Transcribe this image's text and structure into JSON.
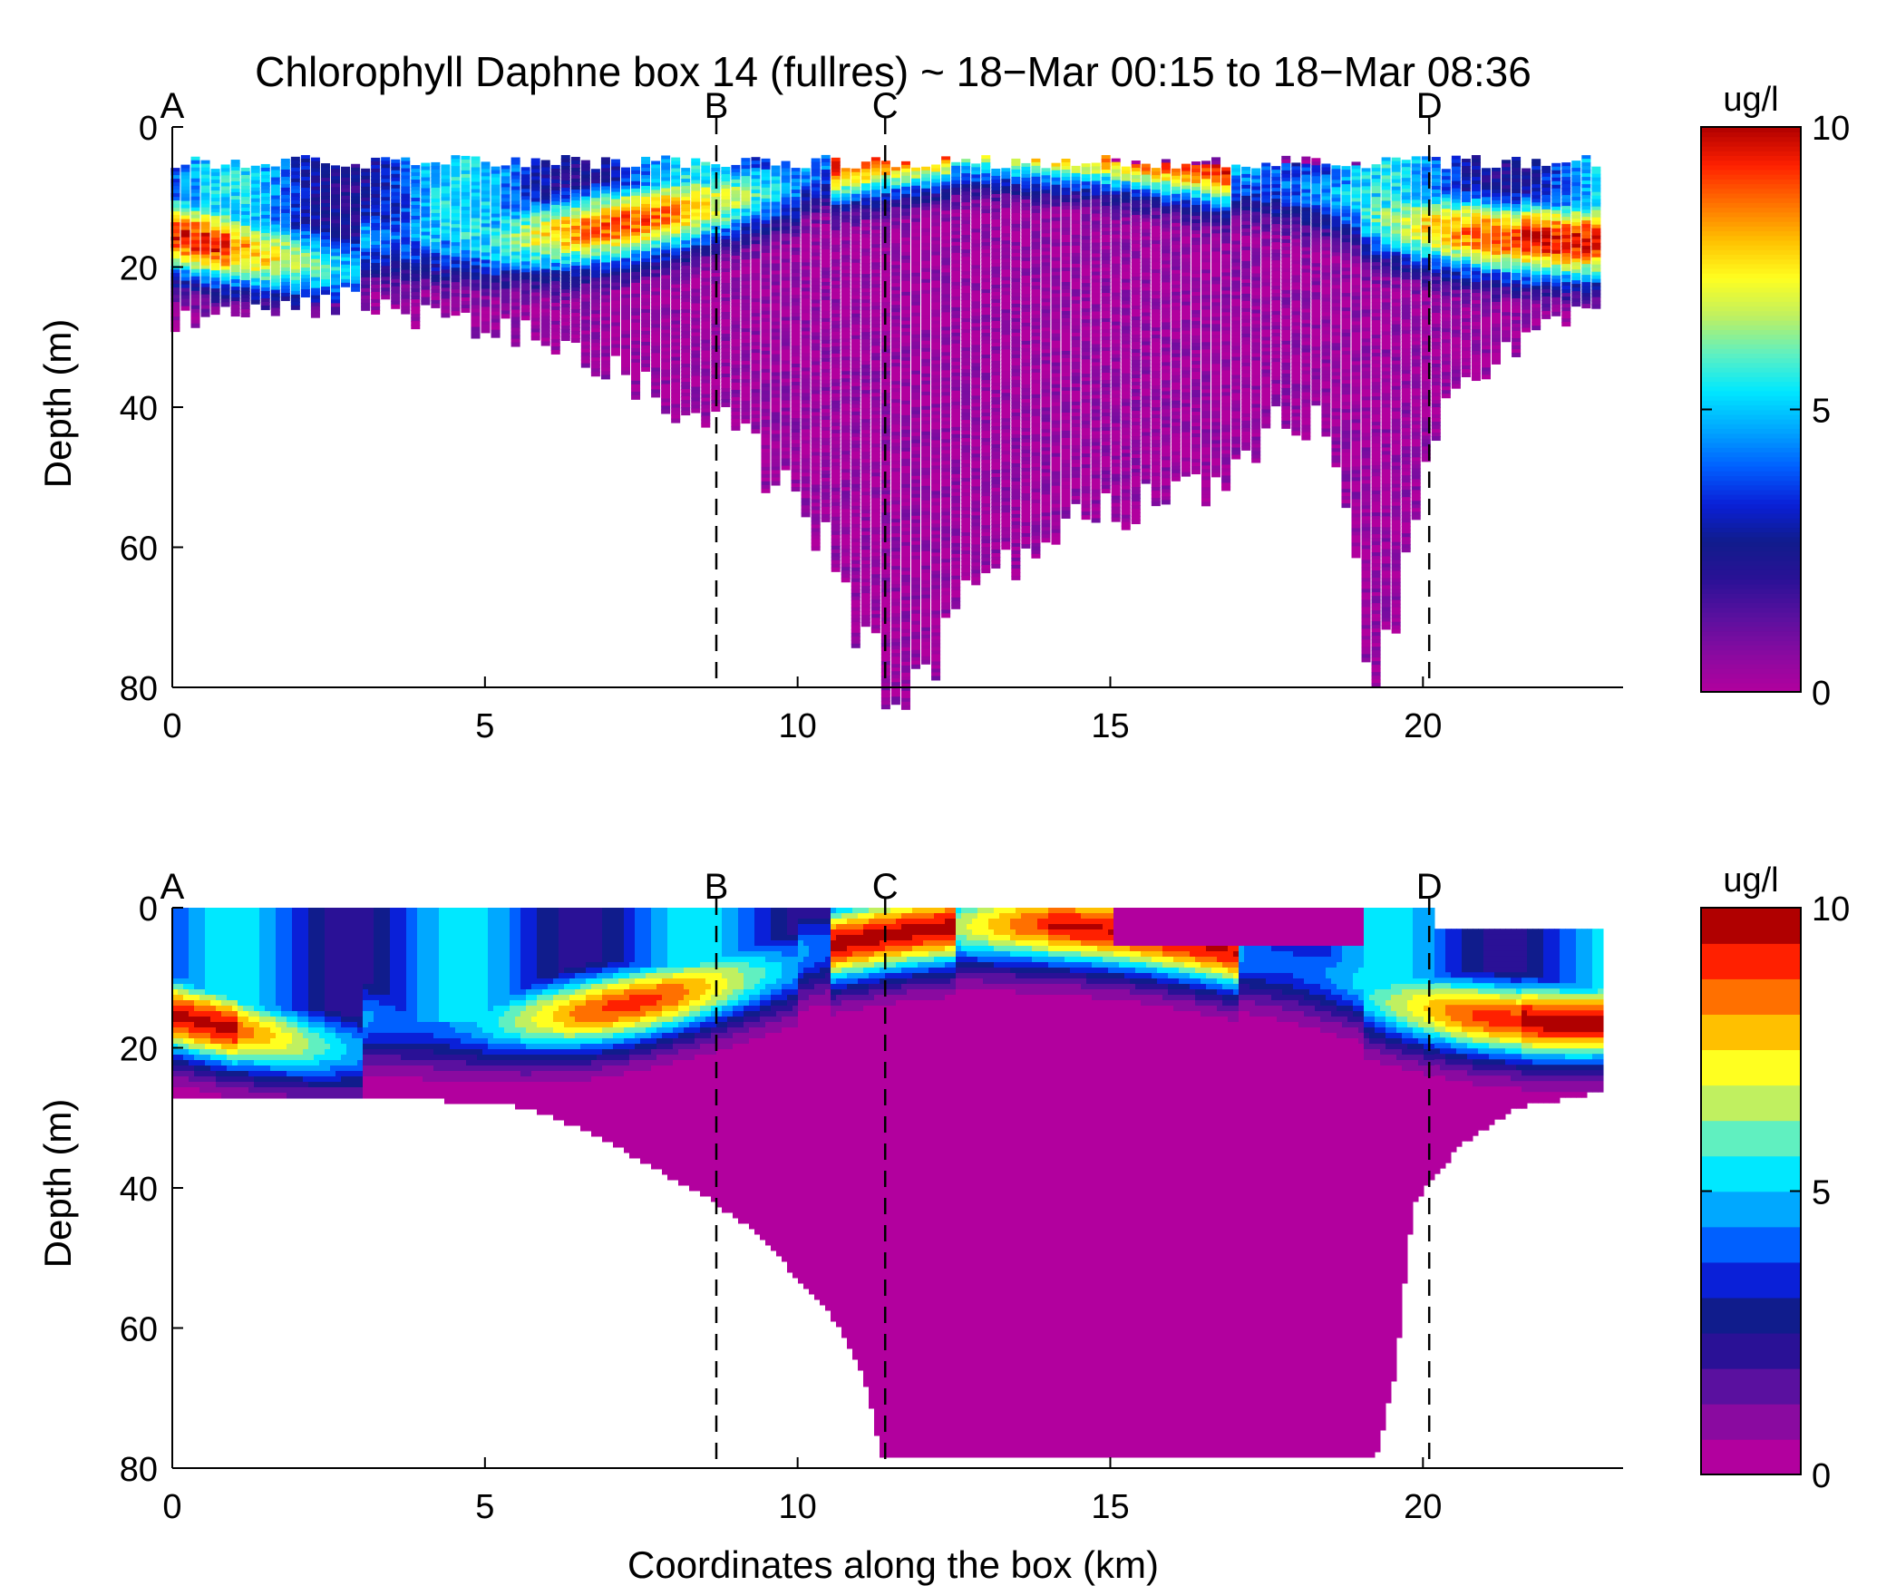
{
  "title": "Chlorophyll Daphne box 14 (fullres) ~ 18−Mar 00:15 to 18−Mar 08:36",
  "colormap": [
    "#b2009e",
    "#8a0aa0",
    "#5a109f",
    "#2a1196",
    "#101c8c",
    "#0a20d8",
    "#0060ff",
    "#00a8ff",
    "#00e8ff",
    "#60f0c0",
    "#c0f060",
    "#ffff20",
    "#ffc000",
    "#ff7000",
    "#ff2000",
    "#b00000"
  ],
  "panel_colors": {
    "background": "#ffffff",
    "axis": "#000000"
  },
  "chart_data": [
    {
      "type": "scatter",
      "name": "top",
      "title": "Chlorophyll Daphne box 14 (fullres) ~ 18−Mar 00:15 to 18−Mar 08:36",
      "xlabel": "",
      "ylabel": "Depth (m)",
      "xlim": [
        0,
        23.2
      ],
      "ylim": [
        0,
        80
      ],
      "y_reversed": true,
      "x_ticks": [
        "0",
        "5",
        "10",
        "15",
        "20"
      ],
      "y_ticks": [
        "0",
        "20",
        "40",
        "60",
        "80"
      ],
      "colorbar": {
        "label": "ug/l",
        "ticks": [
          "0",
          "5",
          "10"
        ],
        "range": [
          0,
          10
        ]
      },
      "section_markers": [
        {
          "label": "A",
          "x": 0.0,
          "dashed": false
        },
        {
          "label": "B",
          "x": 8.7,
          "dashed": true
        },
        {
          "label": "C",
          "x": 11.4,
          "dashed": true
        },
        {
          "label": "D",
          "x": 20.1,
          "dashed": true
        }
      ],
      "profile_max_depth": [
        {
          "x": 0.3,
          "depth": 27
        },
        {
          "x": 1.5,
          "depth": 26
        },
        {
          "x": 3.0,
          "depth": 24
        },
        {
          "x": 4.0,
          "depth": 27
        },
        {
          "x": 5.0,
          "depth": 28
        },
        {
          "x": 6.0,
          "depth": 30
        },
        {
          "x": 7.0,
          "depth": 34
        },
        {
          "x": 8.0,
          "depth": 39
        },
        {
          "x": 8.7,
          "depth": 42
        },
        {
          "x": 9.5,
          "depth": 48
        },
        {
          "x": 10.3,
          "depth": 58
        },
        {
          "x": 10.8,
          "depth": 66
        },
        {
          "x": 11.2,
          "depth": 78
        },
        {
          "x": 11.7,
          "depth": 78
        },
        {
          "x": 12.2,
          "depth": 78
        },
        {
          "x": 12.7,
          "depth": 66
        },
        {
          "x": 13.5,
          "depth": 61
        },
        {
          "x": 14.5,
          "depth": 57
        },
        {
          "x": 15.5,
          "depth": 55
        },
        {
          "x": 16.5,
          "depth": 51
        },
        {
          "x": 17.5,
          "depth": 43
        },
        {
          "x": 18.5,
          "depth": 41
        },
        {
          "x": 19.2,
          "depth": 78
        },
        {
          "x": 19.6,
          "depth": 68
        },
        {
          "x": 20.3,
          "depth": 38
        },
        {
          "x": 21.0,
          "depth": 33
        },
        {
          "x": 22.0,
          "depth": 28
        },
        {
          "x": 22.8,
          "depth": 26
        }
      ]
    },
    {
      "type": "heatmap",
      "name": "bottom",
      "title": "",
      "xlabel": "Coordinates along the box (km)",
      "ylabel": "Depth (m)",
      "xlim": [
        0,
        23.2
      ],
      "ylim": [
        0,
        80
      ],
      "y_reversed": true,
      "x_ticks": [
        "0",
        "5",
        "10",
        "15",
        "20"
      ],
      "y_ticks": [
        "0",
        "20",
        "40",
        "60",
        "80"
      ],
      "colorbar": {
        "label": "ug/l",
        "ticks": [
          "0",
          "5",
          "10"
        ],
        "range": [
          0,
          10
        ],
        "levels": 16
      },
      "section_markers": [
        {
          "label": "A",
          "x": 0.0,
          "dashed": false
        },
        {
          "label": "B",
          "x": 8.7,
          "dashed": true
        },
        {
          "label": "C",
          "x": 11.4,
          "dashed": true
        },
        {
          "label": "D",
          "x": 20.1,
          "dashed": true
        }
      ],
      "bottom_depth": [
        {
          "x": 0.0,
          "depth": 27
        },
        {
          "x": 4.0,
          "depth": 27
        },
        {
          "x": 5.5,
          "depth": 28
        },
        {
          "x": 6.5,
          "depth": 31
        },
        {
          "x": 7.5,
          "depth": 36
        },
        {
          "x": 8.5,
          "depth": 41
        },
        {
          "x": 9.3,
          "depth": 46
        },
        {
          "x": 10.0,
          "depth": 53
        },
        {
          "x": 10.6,
          "depth": 59
        },
        {
          "x": 11.0,
          "depth": 66
        },
        {
          "x": 11.3,
          "depth": 78
        },
        {
          "x": 19.2,
          "depth": 78
        },
        {
          "x": 19.5,
          "depth": 67
        },
        {
          "x": 19.8,
          "depth": 42
        },
        {
          "x": 20.5,
          "depth": 34
        },
        {
          "x": 21.5,
          "depth": 28
        },
        {
          "x": 22.8,
          "depth": 26
        }
      ]
    }
  ]
}
